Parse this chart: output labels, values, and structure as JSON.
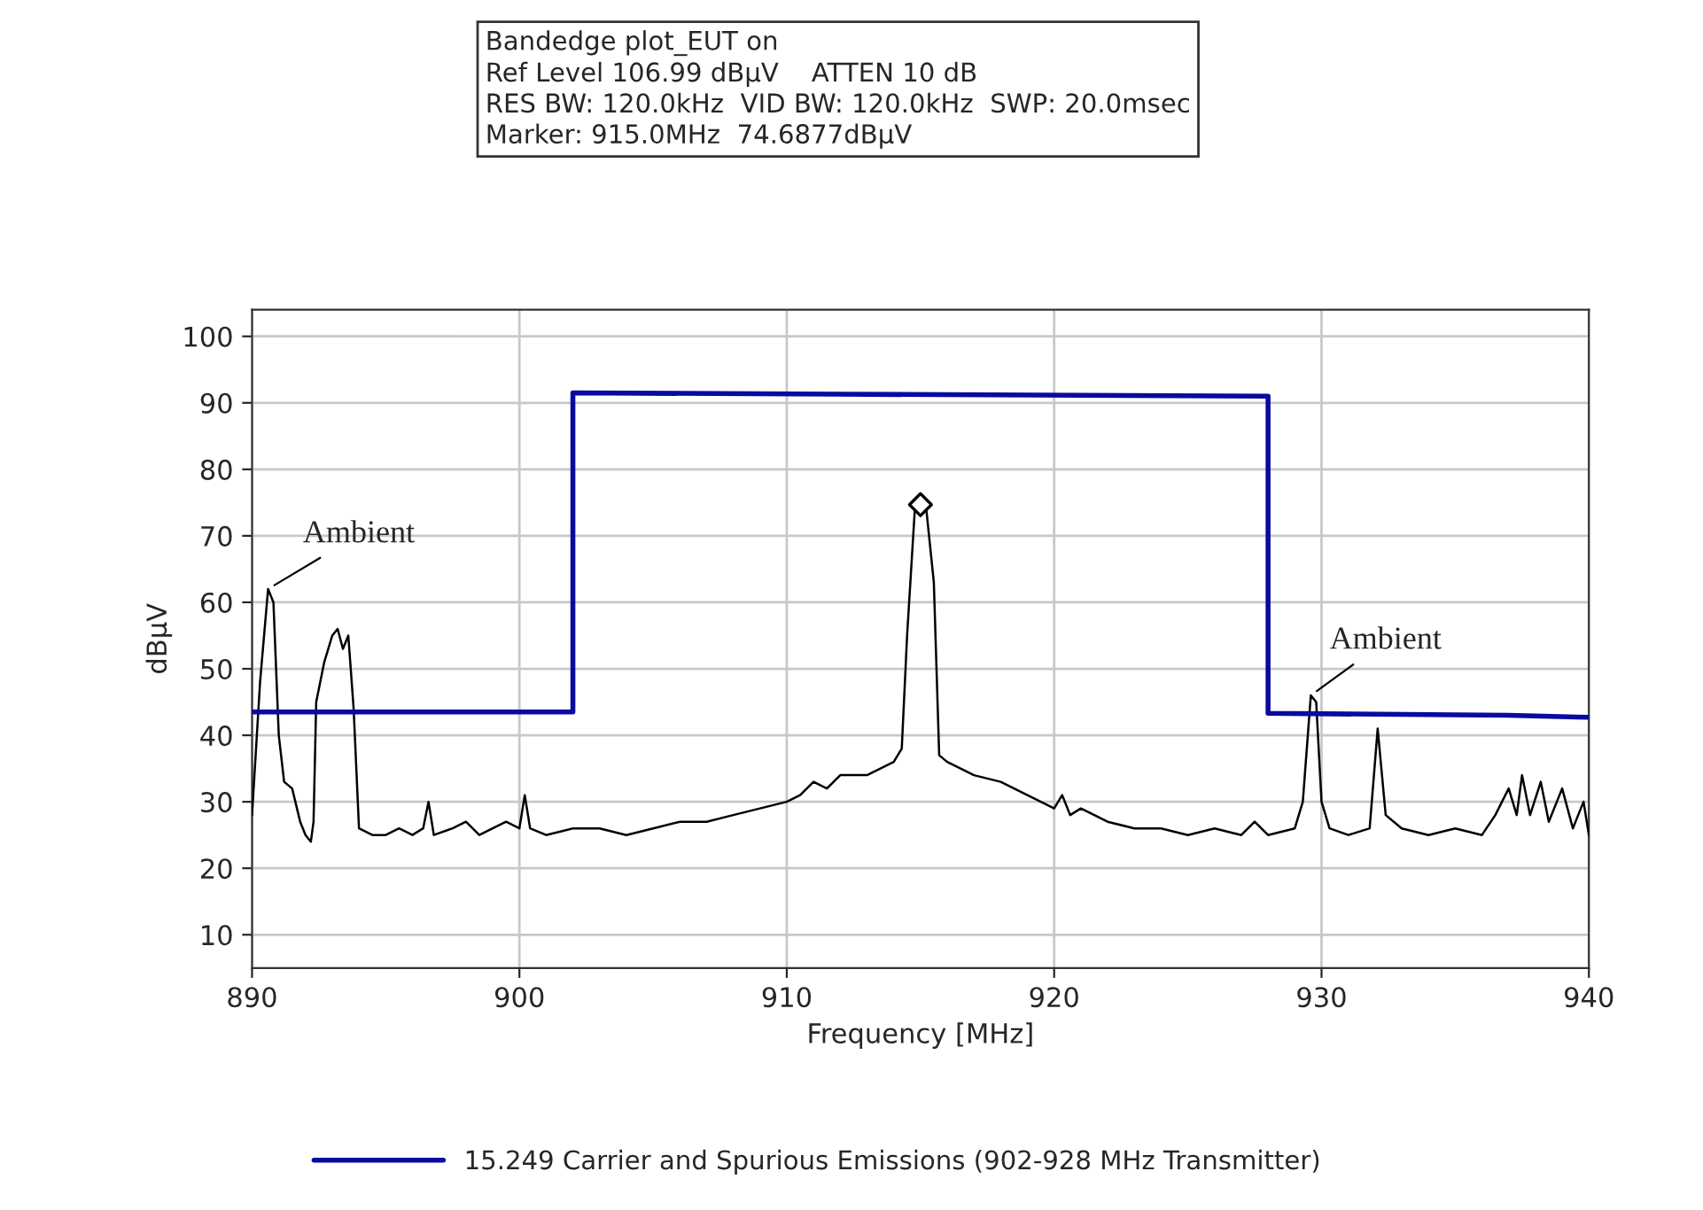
{
  "chart_data": {
    "type": "line",
    "title": "Bandedge plot_EUT on\nRef Level 106.99 dBµV    ATTEN 10 dB\nRES BW: 120.0kHz  VID BW: 120.0kHz  SWP: 20.0msec\nMarker: 915.0MHz  74.6877dBµV",
    "xlabel": "Frequency [MHz]",
    "ylabel": "dBµV",
    "xlim": [
      890,
      940
    ],
    "xticks": [
      890,
      900,
      910,
      920,
      930,
      940
    ],
    "ylim": [
      5,
      104
    ],
    "yticks": [
      10,
      20,
      30,
      40,
      50,
      60,
      70,
      80,
      90,
      100
    ],
    "grid": true,
    "legend": "bottom",
    "series": [
      {
        "name": "15.249 Carrier and Spurious Emissions (902-928 MHz Transmitter)",
        "color": "#0a0aa0",
        "x": [
          890,
          902,
          902,
          912,
          928,
          928,
          937,
          940
        ],
        "values": [
          43.5,
          43.5,
          91.5,
          91.3,
          91,
          43.3,
          43,
          42.7
        ]
      },
      {
        "color": "#000000",
        "x": [
          890.0,
          890.3,
          890.6,
          890.8,
          891.0,
          891.2,
          891.5,
          891.8,
          892.0,
          892.2,
          892.3,
          892.4,
          892.7,
          893.0,
          893.2,
          893.4,
          893.6,
          893.8,
          894.0,
          894.5,
          895.0,
          895.5,
          896.0,
          896.4,
          896.6,
          896.8,
          897.5,
          898.0,
          898.5,
          899.0,
          899.5,
          900.0,
          900.2,
          900.4,
          901,
          902,
          903,
          904,
          905,
          906,
          907,
          908,
          909,
          910,
          910.5,
          911,
          911.5,
          912,
          913,
          913.5,
          914,
          914.3,
          914.5,
          914.8,
          915.2,
          915.5,
          915.7,
          916,
          917,
          918,
          919,
          920,
          920.3,
          920.6,
          921,
          922,
          923,
          924,
          925,
          926,
          927,
          927.5,
          928,
          929,
          929.3,
          929.6,
          929.8,
          930,
          930.3,
          931,
          931.8,
          932.1,
          932.4,
          933,
          934,
          935,
          936,
          936.5,
          937,
          937.3,
          937.5,
          937.8,
          938.2,
          938.5,
          939,
          939.4,
          939.8,
          940
        ],
        "values": [
          28,
          48,
          62,
          60,
          40,
          33,
          32,
          27,
          25,
          24,
          27,
          45,
          51,
          55,
          56,
          53,
          55,
          44,
          26,
          25,
          25,
          26,
          25,
          26,
          30,
          25,
          26,
          27,
          25,
          26,
          27,
          26,
          31,
          26,
          25,
          26,
          26,
          25,
          26,
          27,
          27,
          28,
          29,
          30,
          31,
          33,
          32,
          34,
          34,
          35,
          36,
          38,
          55,
          74.7,
          74.7,
          63,
          37,
          36,
          34,
          33,
          31,
          29,
          31,
          28,
          29,
          27,
          26,
          26,
          25,
          26,
          25,
          27,
          25,
          26,
          30,
          46,
          45,
          30,
          26,
          25,
          26,
          41,
          28,
          26,
          25,
          26,
          25,
          28,
          32,
          28,
          34,
          28,
          33,
          27,
          32,
          26,
          30,
          25
        ]
      },
      {
        "type": "scatter",
        "marker": "diamond",
        "color": "#000000",
        "x": [
          915.0
        ],
        "values": [
          74.6877
        ]
      }
    ],
    "annotations": [
      {
        "text": "Ambient",
        "x": 890.6,
        "y": 62
      },
      {
        "text": "Ambient",
        "x": 929.6,
        "y": 46
      }
    ]
  }
}
